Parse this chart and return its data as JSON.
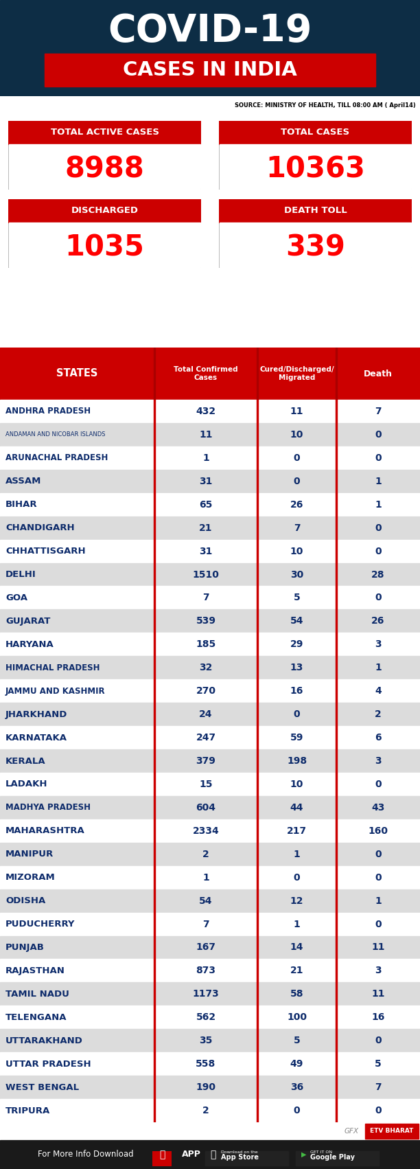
{
  "title1": "COVID-19",
  "title2": "CASES IN INDIA",
  "source": "SOURCE: MINISTRY OF HEALTH, TILL 08:00 AM ( April14)",
  "stats": [
    {
      "label": "TOTAL ACTIVE CASES",
      "value": "8988"
    },
    {
      "label": "TOTAL CASES",
      "value": "10363"
    },
    {
      "label": "DISCHARGED",
      "value": "1035"
    },
    {
      "label": "DEATH TOLL",
      "value": "339"
    }
  ],
  "col_headers": [
    "STATES",
    "Total Confirmed\nCases",
    "Cured/Discharged/\nMigrated",
    "Death"
  ],
  "states": [
    [
      "ANDHRA PRADESH",
      "432",
      "11",
      "7"
    ],
    [
      "ANDAMAN AND NICOBAR ISLANDS",
      "11",
      "10",
      "0"
    ],
    [
      "ARUNACHAL PRADESH",
      "1",
      "0",
      "0"
    ],
    [
      "ASSAM",
      "31",
      "0",
      "1"
    ],
    [
      "BIHAR",
      "65",
      "26",
      "1"
    ],
    [
      "CHANDIGARH",
      "21",
      "7",
      "0"
    ],
    [
      "CHHATTISGARH",
      "31",
      "10",
      "0"
    ],
    [
      "DELHI",
      "1510",
      "30",
      "28"
    ],
    [
      "GOA",
      "7",
      "5",
      "0"
    ],
    [
      "GUJARAT",
      "539",
      "54",
      "26"
    ],
    [
      "HARYANA",
      "185",
      "29",
      "3"
    ],
    [
      "HIMACHAL PRADESH",
      "32",
      "13",
      "1"
    ],
    [
      "JAMMU AND KASHMIR",
      "270",
      "16",
      "4"
    ],
    [
      "JHARKHAND",
      "24",
      "0",
      "2"
    ],
    [
      "KARNATAKA",
      "247",
      "59",
      "6"
    ],
    [
      "KERALA",
      "379",
      "198",
      "3"
    ],
    [
      "LADAKH",
      "15",
      "10",
      "0"
    ],
    [
      "MADHYA PRADESH",
      "604",
      "44",
      "43"
    ],
    [
      "MAHARASHTRA",
      "2334",
      "217",
      "160"
    ],
    [
      "MANIPUR",
      "2",
      "1",
      "0"
    ],
    [
      "MIZORAM",
      "1",
      "0",
      "0"
    ],
    [
      "ODISHA",
      "54",
      "12",
      "1"
    ],
    [
      "PUDUCHERRY",
      "7",
      "1",
      "0"
    ],
    [
      "PUNJAB",
      "167",
      "14",
      "11"
    ],
    [
      "RAJASTHAN",
      "873",
      "21",
      "3"
    ],
    [
      "TAMIL NADU",
      "1173",
      "58",
      "11"
    ],
    [
      "TELENGANA",
      "562",
      "100",
      "16"
    ],
    [
      "UTTARAKHAND",
      "35",
      "5",
      "0"
    ],
    [
      "UTTAR PRADESH",
      "558",
      "49",
      "5"
    ],
    [
      "WEST BENGAL",
      "190",
      "36",
      "7"
    ],
    [
      "TRIPURA",
      "2",
      "0",
      "0"
    ]
  ],
  "red": "#CC0000",
  "dark_navy": "#0D2D45",
  "white": "#FFFFFF",
  "state_text": "#0D2B6B",
  "row_odd": "#FFFFFF",
  "row_even": "#DCDCDC",
  "black": "#1A1A1A",
  "footer_bg": "#1A1A1A"
}
